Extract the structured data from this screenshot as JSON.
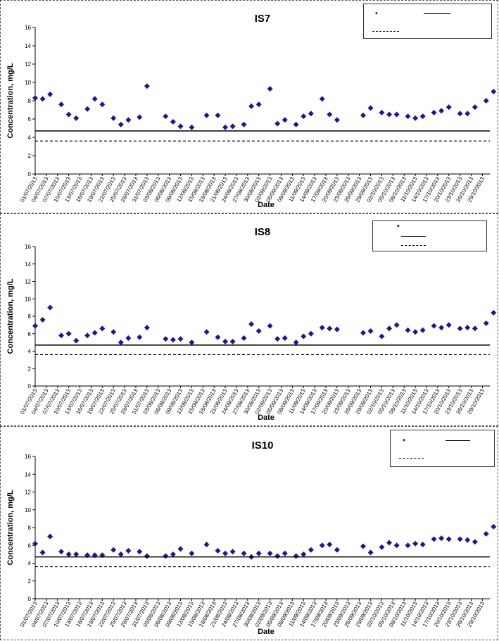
{
  "chart_data": [
    {
      "type": "scatter",
      "title": "IS7",
      "xlabel": "Date",
      "ylabel": "Concentration, mg/L",
      "ylim": [
        0,
        16
      ],
      "yticks": [
        0,
        2,
        4,
        6,
        8,
        10,
        12,
        14,
        16
      ],
      "xlim": [
        "01/07/2013",
        "31/10/2013"
      ],
      "x_tick_labels": [
        "01/07/2013",
        "04/07/2013",
        "07/07/2013",
        "10/07/2013",
        "13/07/2013",
        "16/07/2013",
        "19/07/2013",
        "22/07/2013",
        "25/07/2013",
        "28/07/2013",
        "31/07/2013",
        "03/08/2013",
        "06/08/2013",
        "09/08/2013",
        "12/08/2013",
        "15/08/2013",
        "18/08/2013",
        "21/08/2013",
        "24/08/2013",
        "27/08/2013",
        "30/08/2013",
        "02/09/2013",
        "05/09/2013",
        "08/09/2013",
        "11/09/2013",
        "14/09/2013",
        "17/09/2013",
        "20/09/2013",
        "23/09/2013",
        "26/09/2013",
        "29/09/2013",
        "02/10/2013",
        "05/10/2013",
        "08/10/2013",
        "11/10/2013",
        "14/10/2013",
        "17/10/2013",
        "20/10/2013",
        "23/10/2013",
        "26/10/2013",
        "29/10/2013"
      ],
      "grid": false,
      "legend_position": "top-right",
      "marker_color": "#1a1a8c",
      "series": [
        {
          "marker": "diamond",
          "x": [
            "01/07/2013",
            "03/07/2013",
            "05/07/2013",
            "08/07/2013",
            "10/07/2013",
            "12/07/2013",
            "15/07/2013",
            "17/07/2013",
            "19/07/2013",
            "22/07/2013",
            "24/07/2013",
            "26/07/2013",
            "29/07/2013",
            "31/07/2013",
            "05/08/2013",
            "07/08/2013",
            "09/08/2013",
            "12/08/2013",
            "16/08/2013",
            "19/08/2013",
            "21/08/2013",
            "23/08/2013",
            "26/08/2013",
            "28/08/2013",
            "30/08/2013",
            "02/09/2013",
            "04/09/2013",
            "06/09/2013",
            "09/09/2013",
            "11/09/2013",
            "13/09/2013",
            "16/09/2013",
            "18/09/2013",
            "20/09/2013",
            "27/09/2013",
            "29/09/2013",
            "02/10/2013",
            "04/10/2013",
            "06/10/2013",
            "09/10/2013",
            "11/10/2013",
            "13/10/2013",
            "16/10/2013",
            "18/10/2013",
            "20/10/2013",
            "23/10/2013",
            "25/10/2013",
            "27/10/2013",
            "30/10/2013",
            "01/11/2013"
          ],
          "y": [
            8.3,
            8.2,
            8.7,
            7.6,
            6.5,
            6.1,
            7.1,
            8.2,
            7.6,
            6.1,
            5.4,
            5.9,
            6.2,
            9.6,
            6.3,
            5.7,
            5.2,
            5.1,
            6.4,
            6.4,
            5.1,
            5.2,
            5.4,
            7.4,
            7.6,
            9.3,
            5.5,
            5.9,
            5.4,
            6.3,
            6.6,
            8.2,
            6.5,
            5.9,
            6.4,
            7.2,
            6.7,
            6.5,
            6.5,
            6.3,
            6.1,
            6.3,
            6.7,
            6.9,
            7.3,
            6.6,
            6.6,
            7.3,
            8.0,
            9.0
          ]
        },
        {
          "style": "solid-line",
          "y": 4.7
        },
        {
          "style": "dashed-line",
          "y": 3.6
        }
      ]
    },
    {
      "type": "scatter",
      "title": "IS8",
      "xlabel": "Date",
      "ylabel": "Concentration, mg/L",
      "ylim": [
        0,
        16
      ],
      "yticks": [
        0,
        2,
        4,
        6,
        8,
        10,
        12,
        14,
        16
      ],
      "xlim": [
        "01/07/2013",
        "31/10/2013"
      ],
      "x_tick_labels": [
        "01/07/2013",
        "04/07/2013",
        "07/07/2013",
        "10/07/2013",
        "13/07/2013",
        "16/07/2013",
        "19/07/2013",
        "22/07/2013",
        "25/07/2013",
        "28/07/2013",
        "31/07/2013",
        "03/08/2013",
        "06/08/2013",
        "09/08/2013",
        "12/08/2013",
        "15/08/2013",
        "18/08/2013",
        "21/08/2013",
        "24/08/2013",
        "27/08/2013",
        "30/08/2013",
        "02/09/2013",
        "05/09/2013",
        "08/09/2013",
        "11/09/2013",
        "14/09/2013",
        "17/09/2013",
        "20/09/2013",
        "23/09/2013",
        "26/09/2013",
        "29/09/2013",
        "02/10/2013",
        "05/10/2013",
        "08/10/2013",
        "11/10/2013",
        "14/10/2013",
        "17/10/2013",
        "20/10/2013",
        "23/10/2013",
        "26/10/2013",
        "29/10/2013"
      ],
      "grid": false,
      "legend_position": "top-right",
      "marker_color": "#1a1a8c",
      "series": [
        {
          "marker": "diamond",
          "x": [
            "01/07/2013",
            "03/07/2013",
            "05/07/2013",
            "08/07/2013",
            "10/07/2013",
            "12/07/2013",
            "15/07/2013",
            "17/07/2013",
            "19/07/2013",
            "22/07/2013",
            "24/07/2013",
            "26/07/2013",
            "29/07/2013",
            "31/07/2013",
            "05/08/2013",
            "07/08/2013",
            "09/08/2013",
            "12/08/2013",
            "16/08/2013",
            "19/08/2013",
            "21/08/2013",
            "23/08/2013",
            "26/08/2013",
            "28/08/2013",
            "30/08/2013",
            "02/09/2013",
            "04/09/2013",
            "06/09/2013",
            "09/09/2013",
            "11/09/2013",
            "13/09/2013",
            "16/09/2013",
            "18/09/2013",
            "20/09/2013",
            "27/09/2013",
            "29/09/2013",
            "02/10/2013",
            "04/10/2013",
            "06/10/2013",
            "09/10/2013",
            "11/10/2013",
            "13/10/2013",
            "16/10/2013",
            "18/10/2013",
            "20/10/2013",
            "23/10/2013",
            "25/10/2013",
            "27/10/2013",
            "30/10/2013",
            "01/11/2013"
          ],
          "y": [
            6.9,
            7.6,
            9.0,
            5.8,
            6.0,
            5.2,
            5.8,
            6.1,
            6.6,
            6.2,
            5.0,
            5.5,
            5.6,
            6.7,
            5.4,
            5.3,
            5.4,
            5.0,
            6.2,
            5.6,
            5.1,
            5.1,
            5.5,
            7.1,
            6.3,
            6.9,
            5.4,
            5.5,
            5.0,
            5.7,
            6.0,
            6.7,
            6.6,
            6.5,
            6.1,
            6.3,
            5.7,
            6.6,
            7.0,
            6.4,
            6.2,
            6.4,
            6.9,
            6.7,
            7.0,
            6.6,
            6.7,
            6.6,
            7.2,
            8.4
          ]
        },
        {
          "style": "solid-line",
          "y": 4.7
        },
        {
          "style": "dashed-line",
          "y": 3.6
        }
      ]
    },
    {
      "type": "scatter",
      "title": "IS10",
      "xlabel": "Date",
      "ylabel": "Concentration, mg/L",
      "ylim": [
        0,
        16
      ],
      "yticks": [
        0,
        2,
        4,
        6,
        8,
        10,
        12,
        14,
        16
      ],
      "xlim": [
        "01/07/2013",
        "31/10/2013"
      ],
      "x_tick_labels": [
        "01/07/2013",
        "04/07/2013",
        "07/07/2013",
        "10/07/2013",
        "13/07/2013",
        "16/07/2013",
        "19/07/2013",
        "22/07/2013",
        "25/07/2013",
        "28/07/2013",
        "31/07/2013",
        "03/08/2013",
        "06/08/2013",
        "09/08/2013",
        "12/08/2013",
        "15/08/2013",
        "18/08/2013",
        "21/08/2013",
        "24/08/2013",
        "27/08/2013",
        "30/08/2013",
        "02/09/2013",
        "05/09/2013",
        "08/09/2013",
        "11/09/2013",
        "14/09/2013",
        "17/09/2013",
        "20/09/2013",
        "23/09/2013",
        "26/09/2013",
        "29/09/2013",
        "02/10/2013",
        "05/10/2013",
        "08/10/2013",
        "11/10/2013",
        "14/10/2013",
        "17/10/2013",
        "20/10/2013",
        "23/10/2013",
        "26/10/2013",
        "29/10/2013"
      ],
      "grid": false,
      "legend_position": "top-right",
      "marker_color": "#1a1a8c",
      "series": [
        {
          "marker": "diamond",
          "x": [
            "01/07/2013",
            "03/07/2013",
            "05/07/2013",
            "08/07/2013",
            "10/07/2013",
            "12/07/2013",
            "15/07/2013",
            "17/07/2013",
            "19/07/2013",
            "22/07/2013",
            "24/07/2013",
            "26/07/2013",
            "29/07/2013",
            "31/07/2013",
            "05/08/2013",
            "07/08/2013",
            "09/08/2013",
            "12/08/2013",
            "16/08/2013",
            "19/08/2013",
            "21/08/2013",
            "23/08/2013",
            "26/08/2013",
            "28/08/2013",
            "30/08/2013",
            "02/09/2013",
            "04/09/2013",
            "06/09/2013",
            "09/09/2013",
            "11/09/2013",
            "13/09/2013",
            "16/09/2013",
            "18/09/2013",
            "20/09/2013",
            "27/09/2013",
            "29/09/2013",
            "02/10/2013",
            "04/10/2013",
            "06/10/2013",
            "09/10/2013",
            "11/10/2013",
            "13/10/2013",
            "16/10/2013",
            "18/10/2013",
            "20/10/2013",
            "23/10/2013",
            "25/10/2013",
            "27/10/2013",
            "30/10/2013",
            "01/11/2013"
          ],
          "y": [
            6.2,
            5.2,
            7.0,
            5.3,
            5.0,
            5.0,
            4.9,
            4.9,
            4.9,
            5.5,
            5.0,
            5.4,
            5.3,
            4.8,
            4.8,
            5.0,
            5.6,
            5.1,
            6.1,
            5.4,
            5.1,
            5.3,
            5.1,
            4.7,
            5.1,
            5.1,
            4.8,
            5.1,
            4.8,
            5.0,
            5.5,
            6.0,
            6.1,
            5.5,
            5.9,
            5.2,
            5.8,
            6.3,
            6.0,
            6.0,
            6.2,
            6.1,
            6.7,
            6.8,
            6.7,
            6.7,
            6.6,
            6.4,
            7.3,
            8.1
          ]
        },
        {
          "style": "solid-line",
          "y": 4.7
        },
        {
          "style": "dashed-line",
          "y": 3.6
        }
      ]
    }
  ]
}
